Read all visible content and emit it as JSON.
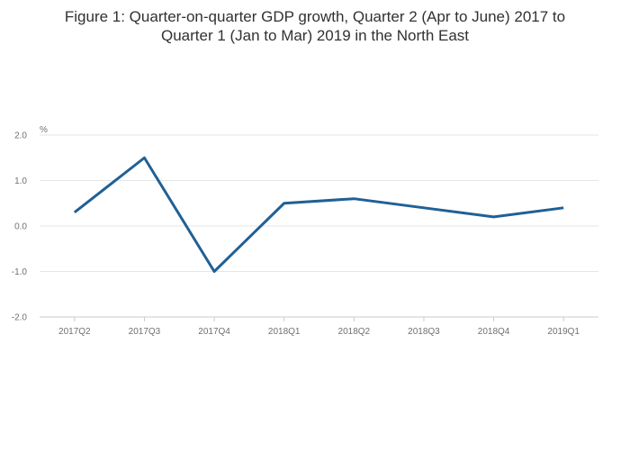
{
  "chart_data": {
    "type": "line",
    "title_line1": "Figure 1: Quarter-on-quarter GDP growth, Quarter 2 (Apr to June) 2017 to",
    "title_line2": "Quarter 1 (Jan to Mar) 2019 in the North East",
    "ylabel": "%",
    "xlabel": "",
    "categories": [
      "2017Q2",
      "2017Q3",
      "2017Q4",
      "2018Q1",
      "2018Q2",
      "2018Q3",
      "2018Q4",
      "2019Q1"
    ],
    "series": [
      {
        "values": [
          0.3,
          1.5,
          -1.0,
          0.5,
          0.6,
          0.4,
          0.2,
          0.4
        ],
        "color": "#206095"
      }
    ],
    "ylim": [
      -2.0,
      2.0
    ],
    "yticks": [
      -2.0,
      -1.0,
      0.0,
      1.0,
      2.0
    ],
    "ytick_labels": [
      "-2.0",
      "-1.0",
      "0.0",
      "1.0",
      "2.0"
    ],
    "grid": true,
    "legend": "none"
  }
}
